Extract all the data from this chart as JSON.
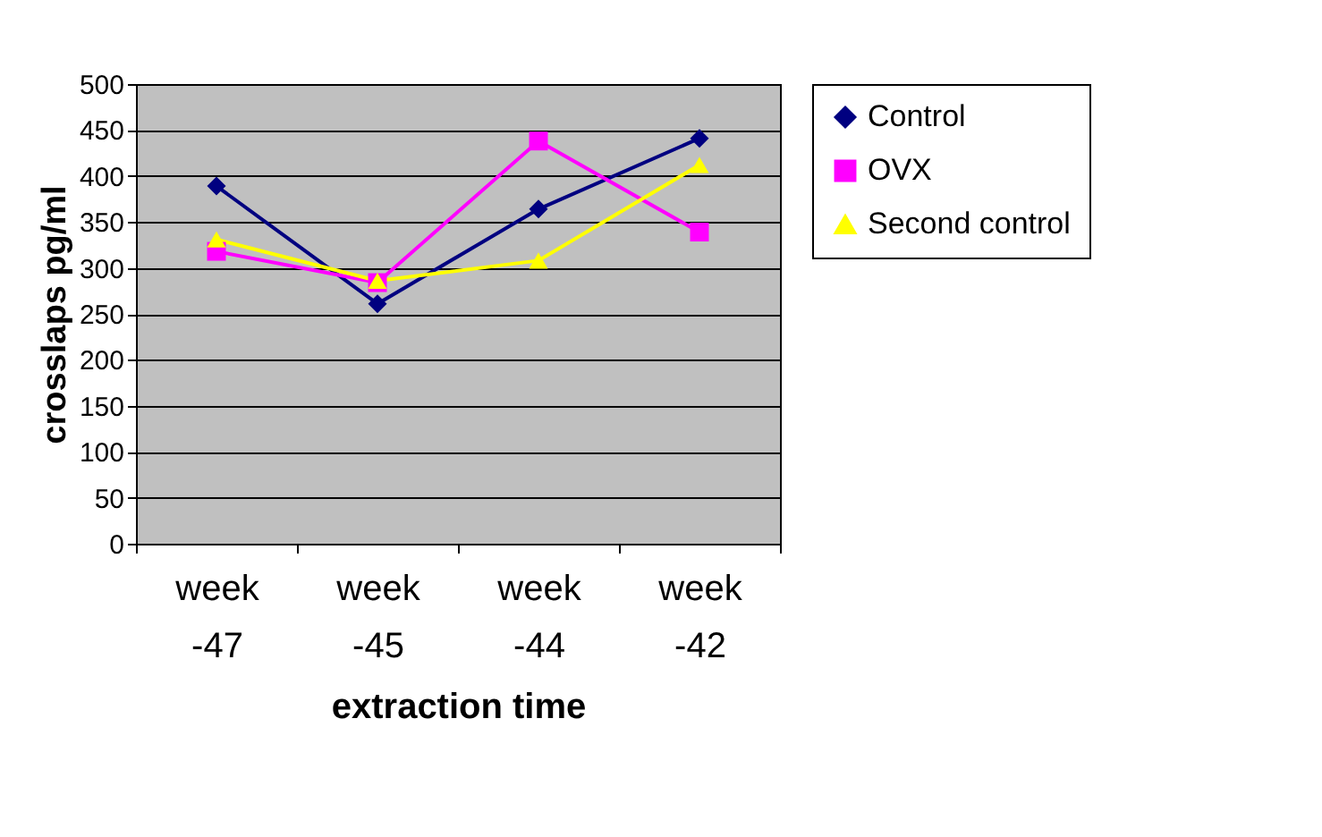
{
  "chart_data": {
    "type": "line",
    "xlabel": "extraction time",
    "ylabel": "crosslaps pg/ml",
    "categories": [
      "week -47",
      "week -45",
      "week -44",
      "week -42"
    ],
    "series": [
      {
        "name": "Control",
        "color": "#000080",
        "marker": "diamond",
        "values": [
          389,
          261,
          364,
          441
        ]
      },
      {
        "name": "OVX",
        "color": "#ff00ff",
        "marker": "square",
        "values": [
          318,
          284,
          438,
          339
        ]
      },
      {
        "name": "Second control",
        "color": "#ffff00",
        "marker": "triangle",
        "values": [
          331,
          286,
          308,
          412
        ]
      }
    ],
    "ylim": [
      0,
      500
    ],
    "yticks": [
      0,
      50,
      100,
      150,
      200,
      250,
      300,
      350,
      400,
      450,
      500
    ],
    "grid": "y",
    "legend": "right",
    "line_style": "solid"
  }
}
